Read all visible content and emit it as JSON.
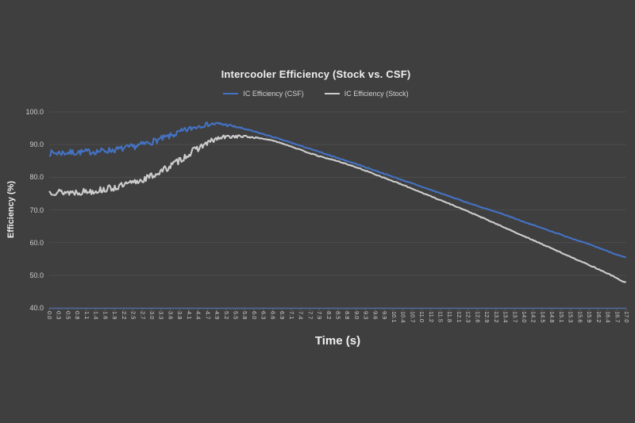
{
  "colors": {
    "background": "#3F3F3F",
    "gridline": "#4C4C4C",
    "axis_line": "#4E689E",
    "title_text": "#EFEFEF",
    "tick_text": "#CFCFCF",
    "csf_blue": "#4472C4",
    "stock_gray": "#CDCDCD"
  },
  "chart_data": {
    "type": "line",
    "title": "Intercooler Efficiency (Stock vs. CSF)",
    "xlabel": "Time (s)",
    "ylabel": "Efficiency (%)",
    "ylim": [
      40,
      100
    ],
    "xlim": [
      0,
      17
    ],
    "grid": "horizontal-only",
    "legend_position": "top-center",
    "y_ticks": [
      "100.0",
      "90.0",
      "80.0",
      "70.0",
      "60.0",
      "50.0",
      "40.0"
    ],
    "x_ticks": [
      "0.0",
      "0.3",
      "0.5",
      "0.8",
      "1.1",
      "1.4",
      "1.6",
      "1.9",
      "2.2",
      "2.5",
      "2.7",
      "3.0",
      "3.3",
      "3.6",
      "3.8",
      "4.1",
      "4.4",
      "4.7",
      "4.9",
      "5.2",
      "5.5",
      "5.8",
      "6.0",
      "6.3",
      "6.6",
      "6.9",
      "7.1",
      "7.4",
      "7.7",
      "7.9",
      "8.2",
      "8.5",
      "8.8",
      "9.0",
      "9.3",
      "9.6",
      "9.9",
      "10.1",
      "10.4",
      "10.7",
      "11.0",
      "11.2",
      "11.5",
      "11.8",
      "12.1",
      "12.3",
      "12.6",
      "12.9",
      "13.2",
      "13.4",
      "13.7",
      "14.0",
      "14.2",
      "14.5",
      "14.8",
      "15.1",
      "15.3",
      "15.6",
      "15.9",
      "16.2",
      "16.4",
      "16.7",
      "17.0"
    ],
    "series": [
      {
        "name": "IC Efficiency (Stock)",
        "color": "#CDCDCD",
        "x": [
          0,
          0.5,
          1,
          1.5,
          2,
          2.5,
          3,
          3.5,
          4,
          4.5,
          5,
          5.5,
          6,
          6.5,
          7,
          7.5,
          8,
          8.5,
          9,
          9.5,
          10,
          10.5,
          11,
          11.5,
          12,
          12.5,
          13,
          13.5,
          14,
          14.5,
          15,
          15.5,
          16,
          16.5,
          17
        ],
        "y": [
          75.6,
          75.4,
          75.6,
          76.1,
          77.0,
          78.4,
          80.3,
          83.0,
          86.3,
          89.6,
          91.9,
          92.5,
          92.2,
          91.4,
          89.9,
          88.0,
          86.3,
          84.9,
          83.2,
          81.3,
          79.3,
          77.3,
          75.2,
          73.1,
          71.0,
          68.8,
          66.5,
          64.2,
          61.9,
          59.6,
          57.3,
          55.0,
          52.7,
          50.3,
          47.8
        ],
        "noise": {
          "amplitude": 1.05,
          "full_until_t": 4.3,
          "min_amplitude": 0.12,
          "min_after_t": 6.3,
          "seed": 13
        }
      },
      {
        "name": "IC Efficiency (CSF)",
        "color": "#4472C4",
        "x": [
          0,
          0.5,
          1,
          1.5,
          2,
          2.5,
          3,
          3.5,
          4,
          4.5,
          5,
          5.5,
          6,
          6.5,
          7,
          7.5,
          8,
          8.5,
          9,
          9.5,
          10,
          10.5,
          11,
          11.5,
          12,
          12.5,
          13,
          13.5,
          14,
          14.5,
          15,
          15.5,
          16,
          16.5,
          17
        ],
        "y": [
          87.4,
          87.5,
          87.7,
          88.0,
          88.5,
          89.4,
          90.8,
          92.4,
          94.3,
          95.9,
          96.3,
          95.4,
          94.1,
          92.6,
          91.0,
          89.3,
          87.6,
          85.9,
          84.2,
          82.4,
          80.6,
          78.8,
          77.0,
          75.2,
          73.4,
          71.6,
          69.9,
          68.2,
          66.3,
          64.5,
          62.7,
          60.9,
          59.1,
          57.2,
          55.4
        ],
        "noise": {
          "amplitude": 0.95,
          "full_until_t": 4.0,
          "min_amplitude": 0.12,
          "min_after_t": 6.0,
          "seed": 7
        }
      }
    ],
    "legend_order": [
      "IC Efficiency (CSF)",
      "IC Efficiency (Stock)"
    ]
  }
}
